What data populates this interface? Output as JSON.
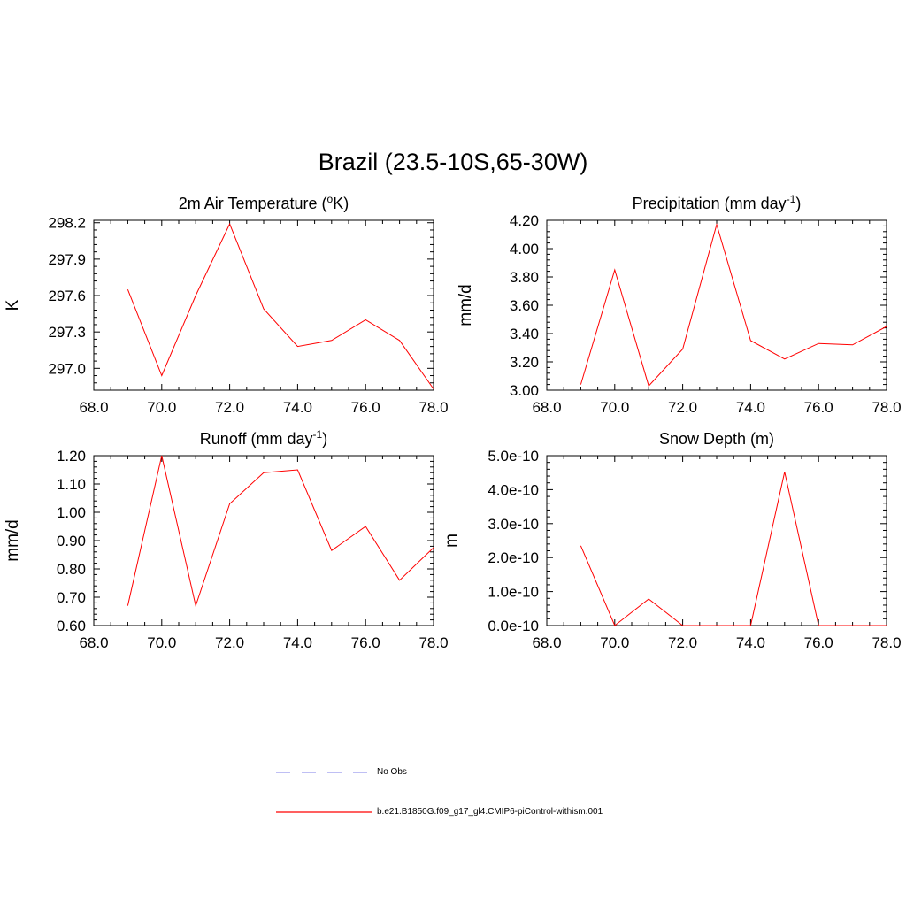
{
  "figure": {
    "title": "Brazil (23.5-10S,65-30W)",
    "legend": [
      {
        "label": "No Obs",
        "color": "#9999ee",
        "style": "dashed"
      },
      {
        "label": "b.e21.B1850G.f09_g17_gl4.CMIP6-piControl-withism.001",
        "color": "#ff0000",
        "style": "solid"
      }
    ]
  },
  "chart_data": [
    {
      "type": "line",
      "title_main": "2m Air Temperature (",
      "title_sup": "o",
      "title_rest": "K)",
      "ylabel": "K",
      "xlim": [
        68,
        78
      ],
      "ylim": [
        296.82,
        298.22
      ],
      "xticks": [
        "68.0",
        "70.0",
        "72.0",
        "74.0",
        "76.0",
        "78.0"
      ],
      "yticks": [
        297.0,
        297.3,
        297.6,
        297.9,
        298.2
      ],
      "ytick_labels": [
        "297.0",
        "297.3",
        "297.6",
        "297.9",
        "298.2"
      ],
      "x": [
        69,
        70,
        71,
        72,
        73,
        74,
        75,
        76,
        77,
        78
      ],
      "series": [
        {
          "color": "#ff0000",
          "values": [
            297.65,
            296.94,
            297.6,
            298.19,
            297.49,
            297.18,
            297.23,
            297.4,
            297.23,
            296.83
          ]
        }
      ]
    },
    {
      "type": "line",
      "title_main": "Precipitation (mm day",
      "title_sup": "-1",
      "title_rest": ")",
      "ylabel": "mm/d",
      "xlim": [
        68,
        78
      ],
      "ylim": [
        3.0,
        4.2
      ],
      "xticks": [
        "68.0",
        "70.0",
        "72.0",
        "74.0",
        "76.0",
        "78.0"
      ],
      "yticks": [
        3.0,
        3.2,
        3.4,
        3.6,
        3.8,
        4.0,
        4.2
      ],
      "ytick_labels": [
        "3.00",
        "3.20",
        "3.40",
        "3.60",
        "3.80",
        "4.00",
        "4.20"
      ],
      "x": [
        69,
        70,
        71,
        72,
        73,
        74,
        75,
        76,
        77,
        78
      ],
      "series": [
        {
          "color": "#ff0000",
          "values": [
            3.04,
            3.85,
            3.03,
            3.29,
            4.17,
            3.35,
            3.22,
            3.33,
            3.32,
            3.45
          ]
        }
      ]
    },
    {
      "type": "line",
      "title_main": "Runoff (mm day",
      "title_sup": "-1",
      "title_rest": ")",
      "ylabel": "mm/d",
      "xlim": [
        68,
        78
      ],
      "ylim": [
        0.6,
        1.2
      ],
      "xticks": [
        "68.0",
        "70.0",
        "72.0",
        "74.0",
        "76.0",
        "78.0"
      ],
      "yticks": [
        0.6,
        0.7,
        0.8,
        0.9,
        1.0,
        1.1,
        1.2
      ],
      "ytick_labels": [
        "0.60",
        "0.70",
        "0.80",
        "0.90",
        "1.00",
        "1.10",
        "1.20"
      ],
      "x": [
        69,
        70,
        71,
        72,
        73,
        74,
        75,
        76,
        77,
        78
      ],
      "series": [
        {
          "color": "#ff0000",
          "values": [
            0.67,
            1.2,
            0.67,
            1.03,
            1.14,
            1.15,
            0.865,
            0.95,
            0.76,
            0.875
          ]
        }
      ]
    },
    {
      "type": "line",
      "title_main": "Snow Depth (m)",
      "title_sup": "",
      "title_rest": "",
      "ylabel": "m",
      "xlim": [
        68,
        78
      ],
      "ylim": [
        0,
        5e-10
      ],
      "xticks": [
        "68.0",
        "70.0",
        "72.0",
        "74.0",
        "76.0",
        "78.0"
      ],
      "yticks": [
        0,
        1e-10,
        2e-10,
        3e-10,
        4e-10,
        5e-10
      ],
      "ytick_labels": [
        "0.0e-10",
        "1.0e-10",
        "2.0e-10",
        "3.0e-10",
        "4.0e-10",
        "5.0e-10"
      ],
      "x": [
        69,
        70,
        71,
        72,
        73,
        74,
        75,
        76,
        77,
        78
      ],
      "series": [
        {
          "color": "#ff0000",
          "values": [
            2.35e-10,
            0,
            7.8e-11,
            0,
            0,
            0,
            4.52e-10,
            0,
            0,
            0
          ]
        }
      ]
    }
  ]
}
